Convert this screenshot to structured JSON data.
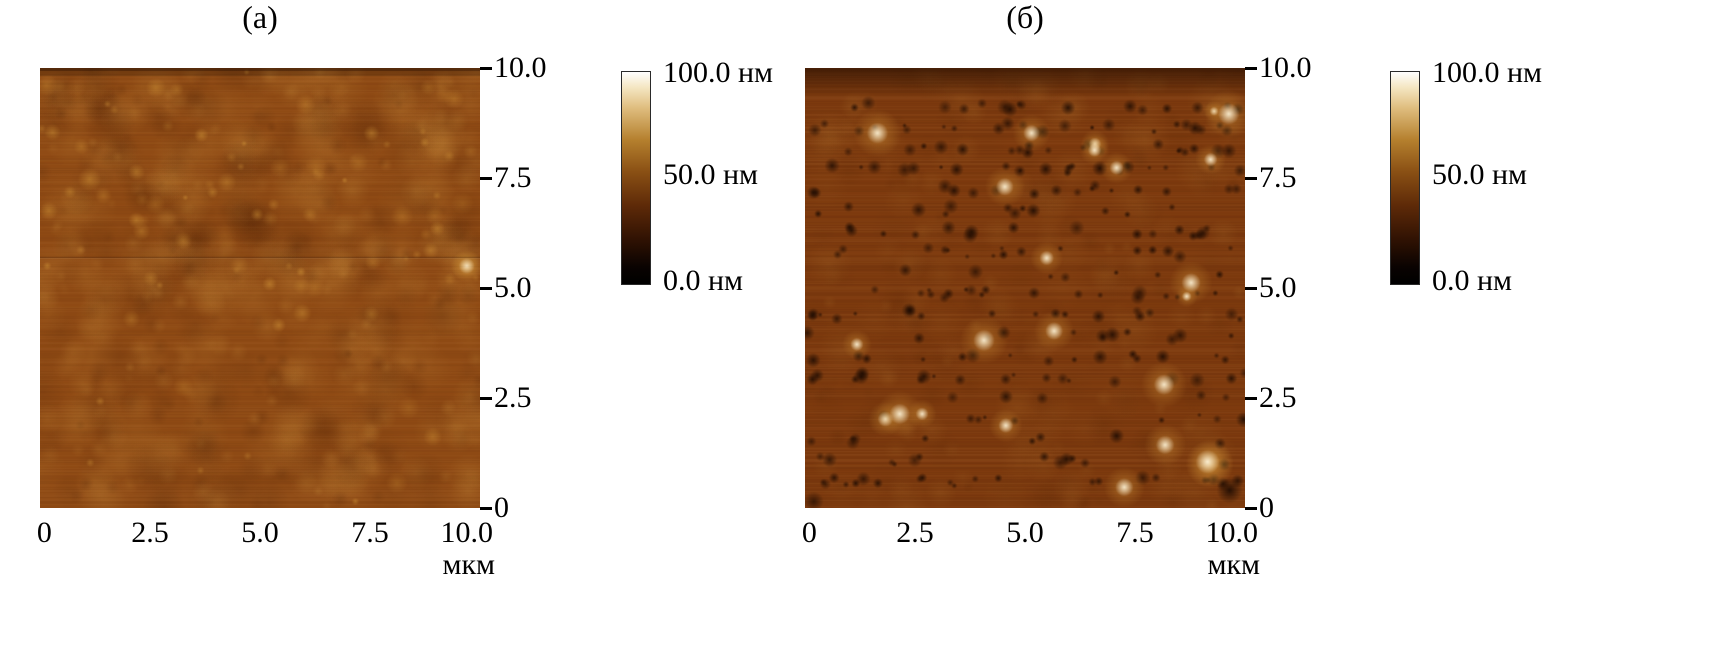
{
  "figure": {
    "panels": [
      {
        "label": "(а)",
        "axis_unit": "мкм",
        "x_ticks": [
          "0",
          "2.5",
          "5.0",
          "7.5",
          "10.0"
        ],
        "y_ticks": [
          "10.0",
          "7.5",
          "5.0",
          "2.5",
          "0"
        ],
        "colorbar_labels": [
          "100.0 нм",
          "50.0 нм",
          "0.0 нм"
        ]
      },
      {
        "label": "(б)",
        "axis_unit": "мкм",
        "x_ticks": [
          "0",
          "2.5",
          "5.0",
          "7.5",
          "10.0"
        ],
        "y_ticks": [
          "10.0",
          "7.5",
          "5.0",
          "2.5",
          "0"
        ],
        "colorbar_labels": [
          "100.0 нм",
          "50.0 нм",
          "0.0 нм"
        ]
      }
    ],
    "palette": {
      "base_a": "#8f4a14",
      "base_b": "#7d3a0e",
      "blob_light": "#c98e3c",
      "blob_dark": "#4f2206",
      "pit": "#1d0b02",
      "peak_core": "#fdf3d8",
      "peak_mid": "#d79a3a",
      "colorbar_top": "#ffffff",
      "colorbar_bottom": "#000000"
    }
  },
  "chart_data": [
    {
      "type": "heatmap",
      "title": "(а)",
      "xlabel": "мкм",
      "x_range_um": [
        0,
        10
      ],
      "y_range_um": [
        0,
        10
      ],
      "x_ticks": [
        0,
        2.5,
        5.0,
        7.5,
        10.0
      ],
      "y_ticks": [
        0,
        2.5,
        5.0,
        7.5,
        10.0
      ],
      "colorbar": {
        "min_nm": 0.0,
        "max_nm": 100.0,
        "tick_labels": [
          "100.0 нм",
          "50.0 нм",
          "0.0 нм"
        ]
      }
    },
    {
      "type": "heatmap",
      "title": "(б)",
      "xlabel": "мкм",
      "x_range_um": [
        0,
        10
      ],
      "y_range_um": [
        0,
        10
      ],
      "x_ticks": [
        0,
        2.5,
        5.0,
        7.5,
        10.0
      ],
      "y_ticks": [
        0,
        2.5,
        5.0,
        7.5,
        10.0
      ],
      "colorbar": {
        "min_nm": 0.0,
        "max_nm": 100.0,
        "tick_labels": [
          "100.0 нм",
          "50.0 нм",
          "0.0 нм"
        ]
      }
    }
  ]
}
